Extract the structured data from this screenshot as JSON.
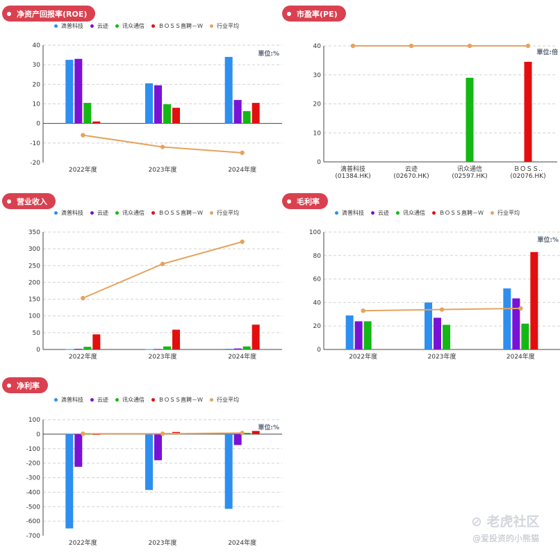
{
  "series_names": [
    "滴普科技",
    "云迹",
    "讯众通信",
    "ＢＯＳＳ直聘－Ｗ",
    "行业平均"
  ],
  "colors": [
    "#2d8ff0",
    "#7a12d6",
    "#14b814",
    "#e30f0f",
    "#e5a35c"
  ],
  "watermark": {
    "brand": "老虎社区",
    "author": "@爱投资的小熊猫"
  },
  "chart_data": [
    {
      "type": "bar",
      "title": "净资产回报率(ROE)",
      "unit": "單位:%",
      "categories": [
        "2022年度",
        "2023年度",
        "2024年度"
      ],
      "ylim": [
        -20,
        40
      ],
      "ystep": 10,
      "legend": "top",
      "series": [
        {
          "name": "滴普科技",
          "values": [
            32.5,
            20.5,
            34
          ]
        },
        {
          "name": "云迹",
          "values": [
            33,
            19.5,
            12
          ]
        },
        {
          "name": "讯众通信",
          "values": [
            10.5,
            9.8,
            6.3
          ]
        },
        {
          "name": "ＢＯＳＳ直聘－Ｗ",
          "values": [
            1,
            8,
            10.5
          ]
        }
      ],
      "line": {
        "name": "行业平均",
        "values": [
          -6,
          -12,
          -15
        ]
      }
    },
    {
      "type": "bar",
      "title": "市盈率(PE)",
      "unit": "單位:倍",
      "categories": [
        "滴普科技\n(01384.HK)",
        "云迹\n(02670.HK)",
        "讯众通信\n(02597.HK)",
        "ＢＯＳＳ..\n(02076.HK)"
      ],
      "ylim": [
        0,
        40
      ],
      "ystep": 10,
      "legend": "none",
      "series": [
        {
          "name": "PE",
          "values": [
            null,
            null,
            29,
            34.5
          ]
        }
      ],
      "line": {
        "name": "行业平均",
        "values": [
          40,
          40,
          40,
          40
        ]
      }
    },
    {
      "type": "bar",
      "title": "营业收入",
      "unit": "",
      "categories": [
        "2022年度",
        "2023年度",
        "2024年度"
      ],
      "ylim": [
        0,
        350
      ],
      "ystep": 50,
      "legend": "top",
      "series": [
        {
          "name": "滴普科技",
          "values": [
            1,
            1,
            2
          ]
        },
        {
          "name": "云迹",
          "values": [
            2,
            1.5,
            3
          ]
        },
        {
          "name": "讯众通信",
          "values": [
            8,
            9,
            9
          ]
        },
        {
          "name": "ＢＯＳＳ直聘－Ｗ",
          "values": [
            45,
            59,
            74
          ]
        }
      ],
      "line": {
        "name": "行业平均",
        "values": [
          153,
          255,
          321
        ]
      }
    },
    {
      "type": "bar",
      "title": "毛利率",
      "unit": "單位:%",
      "categories": [
        "2022年度",
        "2023年度",
        "2024年度"
      ],
      "ylim": [
        0,
        100
      ],
      "ystep": 20,
      "legend": "top",
      "series": [
        {
          "name": "滴普科技",
          "values": [
            29,
            40,
            52
          ]
        },
        {
          "name": "云迹",
          "values": [
            24,
            27,
            43.5
          ]
        },
        {
          "name": "讯众通信",
          "values": [
            24,
            21,
            22
          ]
        },
        {
          "name": "ＢＯＳＳ直聘－Ｗ",
          "values": [
            null,
            null,
            83
          ]
        }
      ],
      "line": {
        "name": "行业平均",
        "values": [
          33,
          34,
          35
        ]
      }
    },
    {
      "type": "bar",
      "title": "净利率",
      "unit": "單位:%",
      "categories": [
        "2022年度",
        "2023年度",
        "2024年度"
      ],
      "ylim": [
        -700,
        100
      ],
      "ystep": 100,
      "legend": "top",
      "series": [
        {
          "name": "滴普科技",
          "values": [
            -650,
            -385,
            -515
          ]
        },
        {
          "name": "云迹",
          "values": [
            -225,
            -180,
            -75
          ]
        },
        {
          "name": "讯众通信",
          "values": [
            1,
            8,
            9
          ]
        },
        {
          "name": "ＢＯＳＳ直聘－Ｗ",
          "values": [
            -2,
            15,
            22
          ]
        }
      ],
      "line": {
        "name": "行业平均",
        "values": [
          3,
          3,
          8
        ]
      }
    }
  ]
}
